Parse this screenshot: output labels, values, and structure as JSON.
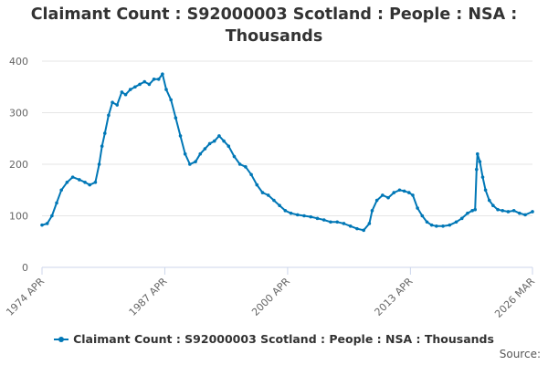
{
  "title_line1": "Claimant Count : S92000003 Scotland : People : NSA :",
  "title_line2": "Thousands",
  "source_label": "Source:",
  "colors": {
    "series": "#0077b6",
    "grid": "#e6e6e6",
    "axis_text": "#666666"
  },
  "chart_data": {
    "type": "line",
    "title": "Claimant Count : S92000003 Scotland : People : NSA : Thousands",
    "xlabel": "",
    "ylabel": "",
    "ylim": [
      0,
      400
    ],
    "yticks": [
      0,
      100,
      200,
      300,
      400
    ],
    "xlim": [
      1974.25,
      2026.17
    ],
    "xtick_labels": [
      "1974 APR",
      "1987 APR",
      "2000 APR",
      "2013 APR",
      "2026 MAR"
    ],
    "xtick_values": [
      1974.25,
      1987.25,
      2000.25,
      2013.25,
      2026.17
    ],
    "grid": true,
    "legend_position": "bottom",
    "series": [
      {
        "name": "Claimant Count : S92000003 Scotland : People : NSA : Thousands",
        "x": [
          1974.25,
          1974.8,
          1975.3,
          1975.8,
          1976.3,
          1976.9,
          1977.5,
          1978.2,
          1978.8,
          1979.3,
          1979.9,
          1980.3,
          1980.6,
          1980.9,
          1981.3,
          1981.7,
          1982.2,
          1982.7,
          1983.1,
          1983.6,
          1984.1,
          1984.6,
          1985.1,
          1985.6,
          1986.1,
          1986.6,
          1987.0,
          1987.4,
          1987.9,
          1988.4,
          1988.9,
          1989.4,
          1989.9,
          1990.5,
          1991.0,
          1991.5,
          1992.0,
          1992.5,
          1993.0,
          1993.5,
          1994.0,
          1994.6,
          1995.2,
          1995.8,
          1996.4,
          1997.0,
          1997.6,
          1998.2,
          1998.8,
          1999.4,
          2000.0,
          2000.6,
          2001.3,
          2002.0,
          2002.7,
          2003.4,
          2004.1,
          2004.8,
          2005.5,
          2006.2,
          2006.9,
          2007.6,
          2008.3,
          2008.9,
          2009.2,
          2009.7,
          2010.3,
          2010.9,
          2011.5,
          2012.1,
          2012.6,
          2013.1,
          2013.5,
          2014.0,
          2014.5,
          2015.0,
          2015.5,
          2016.0,
          2016.7,
          2017.4,
          2018.1,
          2018.7,
          2019.3,
          2019.8,
          2020.1,
          2020.25,
          2020.35,
          2020.6,
          2020.9,
          2021.2,
          2021.6,
          2022.0,
          2022.5,
          2023.0,
          2023.6,
          2024.2,
          2024.8,
          2025.4,
          2026.17
        ],
        "values": [
          82,
          85,
          100,
          125,
          150,
          165,
          175,
          170,
          165,
          160,
          165,
          200,
          235,
          260,
          295,
          320,
          315,
          340,
          335,
          345,
          350,
          355,
          360,
          355,
          365,
          365,
          375,
          345,
          325,
          290,
          255,
          220,
          200,
          205,
          220,
          230,
          240,
          245,
          255,
          245,
          235,
          215,
          200,
          195,
          180,
          160,
          145,
          140,
          130,
          120,
          110,
          105,
          102,
          100,
          98,
          95,
          92,
          88,
          88,
          85,
          80,
          75,
          72,
          85,
          110,
          130,
          140,
          135,
          145,
          150,
          148,
          145,
          140,
          115,
          100,
          88,
          82,
          80,
          80,
          82,
          88,
          95,
          105,
          110,
          112,
          190,
          220,
          205,
          175,
          150,
          130,
          120,
          112,
          110,
          108,
          110,
          105,
          102,
          108
        ]
      }
    ]
  }
}
